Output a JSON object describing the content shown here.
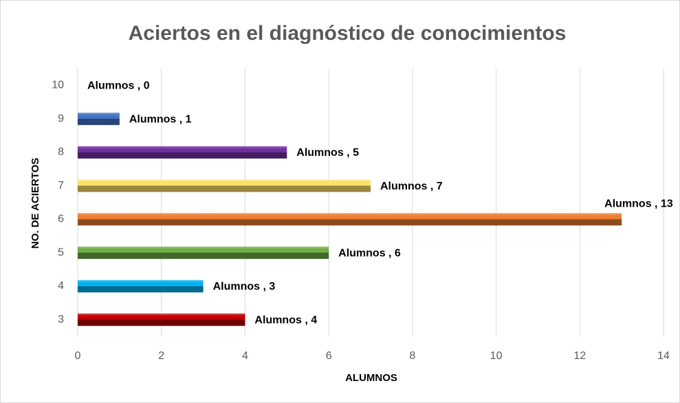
{
  "chart_data": {
    "type": "barh",
    "title": "Aciertos en el diagnóstico de conocimientos",
    "xlabel": "ALUMNOS",
    "ylabel": "NO. DE ACIERTOS",
    "categories": [
      "3",
      "4",
      "5",
      "6",
      "7",
      "8",
      "9",
      "10"
    ],
    "series": [
      {
        "name": "Alumnos",
        "values": [
          4,
          3,
          6,
          13,
          7,
          5,
          1,
          0
        ],
        "value_labels": [
          "Alumnos , 4",
          "Alumnos , 3",
          "Alumnos , 6",
          "Alumnos , 13",
          "Alumnos , 7",
          "Alumnos , 5",
          "Alumnos , 1",
          "Alumnos , 0"
        ],
        "colors": [
          "#c00000",
          "#00b0f0",
          "#70ad47",
          "#ed7d31",
          "#ffe066",
          "#7030a0",
          "#4472c4",
          "#4472c4"
        ]
      }
    ],
    "xlim": [
      0,
      14
    ],
    "xticks": [
      0,
      2,
      4,
      6,
      8,
      10,
      12,
      14
    ],
    "grid": true
  }
}
